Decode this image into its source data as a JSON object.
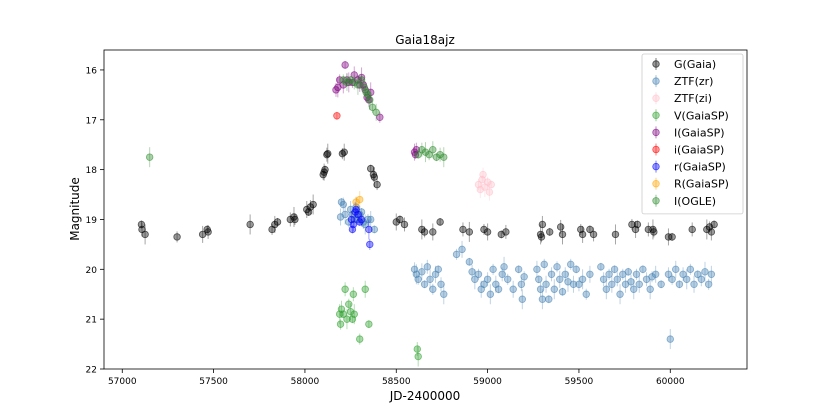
{
  "chart_data": {
    "type": "scatter",
    "title": "Gaia18ajz",
    "xlabel": "JD-2400000",
    "ylabel": "Magnitude",
    "xlim": [
      56900,
      60420
    ],
    "ylim": [
      22,
      15.6
    ],
    "y_inverted": true,
    "xticks": [
      57000,
      57500,
      58000,
      58500,
      59000,
      59500,
      60000
    ],
    "yticks": [
      16,
      17,
      18,
      19,
      20,
      21,
      22
    ],
    "legend_position": "top-right",
    "series": [
      {
        "name": "G(Gaia)",
        "color": "#000000",
        "points": [
          [
            57105,
            19.1
          ],
          [
            57108,
            19.2
          ],
          [
            57125,
            19.3
          ],
          [
            57300,
            19.35
          ],
          [
            57440,
            19.3
          ],
          [
            57465,
            19.2
          ],
          [
            57470,
            19.25
          ],
          [
            57700,
            19.1
          ],
          [
            57820,
            19.2
          ],
          [
            57835,
            19.1
          ],
          [
            57850,
            19.05
          ],
          [
            57920,
            19.0
          ],
          [
            57940,
            18.95
          ],
          [
            57945,
            19.0
          ],
          [
            58010,
            18.8
          ],
          [
            58020,
            18.85
          ],
          [
            58030,
            18.75
          ],
          [
            58045,
            18.7
          ],
          [
            58100,
            18.1
          ],
          [
            58105,
            18.05
          ],
          [
            58110,
            18.0
          ],
          [
            58120,
            17.7
          ],
          [
            58125,
            17.68
          ],
          [
            58205,
            17.68
          ],
          [
            58215,
            17.65
          ],
          [
            58360,
            17.98
          ],
          [
            58375,
            18.1
          ],
          [
            58380,
            18.15
          ],
          [
            58395,
            18.3
          ],
          [
            58500,
            19.05
          ],
          [
            58520,
            19.0
          ],
          [
            58545,
            19.1
          ],
          [
            58640,
            19.2
          ],
          [
            58655,
            19.25
          ],
          [
            58700,
            19.25
          ],
          [
            58740,
            19.05
          ],
          [
            58865,
            19.2
          ],
          [
            58900,
            19.25
          ],
          [
            58980,
            19.2
          ],
          [
            59000,
            19.25
          ],
          [
            59075,
            19.3
          ],
          [
            59100,
            19.25
          ],
          [
            59290,
            19.3
          ],
          [
            59295,
            19.35
          ],
          [
            59300,
            19.1
          ],
          [
            59340,
            19.25
          ],
          [
            59400,
            19.15
          ],
          [
            59410,
            19.3
          ],
          [
            59510,
            19.2
          ],
          [
            59520,
            19.3
          ],
          [
            59560,
            19.2
          ],
          [
            59580,
            19.3
          ],
          [
            59700,
            19.3
          ],
          [
            59790,
            19.1
          ],
          [
            59810,
            19.2
          ],
          [
            59820,
            19.1
          ],
          [
            59880,
            19.2
          ],
          [
            59905,
            19.2
          ],
          [
            59910,
            19.25
          ],
          [
            59990,
            19.35
          ],
          [
            60010,
            19.35
          ],
          [
            60120,
            19.2
          ],
          [
            60200,
            19.2
          ],
          [
            60215,
            19.15
          ],
          [
            60225,
            19.25
          ],
          [
            60240,
            19.1
          ]
        ]
      },
      {
        "name": "ZTF(zr)",
        "color": "#4682b4",
        "points": [
          [
            58195,
            18.95
          ],
          [
            58200,
            18.65
          ],
          [
            58210,
            18.7
          ],
          [
            58220,
            18.9
          ],
          [
            58240,
            19.05
          ],
          [
            58250,
            18.8
          ],
          [
            58260,
            18.9
          ],
          [
            58270,
            19.0
          ],
          [
            58280,
            18.75
          ],
          [
            58290,
            19.0
          ],
          [
            58300,
            18.9
          ],
          [
            58310,
            18.85
          ],
          [
            58320,
            19.05
          ],
          [
            58330,
            19.1
          ],
          [
            58345,
            19.0
          ],
          [
            58360,
            19.0
          ],
          [
            58380,
            19.2
          ],
          [
            58600,
            20.0
          ],
          [
            58610,
            20.1
          ],
          [
            58620,
            20.2
          ],
          [
            58640,
            20.05
          ],
          [
            58655,
            20.3
          ],
          [
            58670,
            19.95
          ],
          [
            58685,
            20.2
          ],
          [
            58700,
            20.4
          ],
          [
            58715,
            20.1
          ],
          [
            58730,
            20.0
          ],
          [
            58745,
            20.3
          ],
          [
            58760,
            20.5
          ],
          [
            58830,
            19.7
          ],
          [
            58860,
            19.6
          ],
          [
            58900,
            19.85
          ],
          [
            58915,
            20.05
          ],
          [
            58930,
            20.2
          ],
          [
            58950,
            20.1
          ],
          [
            58965,
            20.4
          ],
          [
            58980,
            20.3
          ],
          [
            59000,
            20.2
          ],
          [
            59015,
            20.5
          ],
          [
            59030,
            20.0
          ],
          [
            59045,
            20.3
          ],
          [
            59060,
            20.4
          ],
          [
            59080,
            20.1
          ],
          [
            59090,
            19.95
          ],
          [
            59110,
            20.2
          ],
          [
            59140,
            20.4
          ],
          [
            59170,
            20.0
          ],
          [
            59185,
            20.3
          ],
          [
            59190,
            20.6
          ],
          [
            59200,
            20.15
          ],
          [
            59270,
            20.0
          ],
          [
            59280,
            20.2
          ],
          [
            59290,
            20.4
          ],
          [
            59300,
            20.6
          ],
          [
            59310,
            19.9
          ],
          [
            59320,
            20.3
          ],
          [
            59335,
            20.6
          ],
          [
            59350,
            20.1
          ],
          [
            59365,
            20.4
          ],
          [
            59380,
            19.95
          ],
          [
            59395,
            20.2
          ],
          [
            59410,
            20.45
          ],
          [
            59425,
            20.1
          ],
          [
            59440,
            20.25
          ],
          [
            59455,
            19.9
          ],
          [
            59470,
            20.3
          ],
          [
            59485,
            20.0
          ],
          [
            59500,
            20.3
          ],
          [
            59520,
            20.2
          ],
          [
            59540,
            20.5
          ],
          [
            59560,
            20.1
          ],
          [
            59620,
            19.95
          ],
          [
            59635,
            20.2
          ],
          [
            59650,
            20.4
          ],
          [
            59665,
            20.1
          ],
          [
            59680,
            20.3
          ],
          [
            59695,
            20.0
          ],
          [
            59710,
            20.2
          ],
          [
            59725,
            20.5
          ],
          [
            59740,
            20.1
          ],
          [
            59755,
            20.3
          ],
          [
            59770,
            20.05
          ],
          [
            59785,
            20.25
          ],
          [
            59800,
            20.4
          ],
          [
            59815,
            20.1
          ],
          [
            59830,
            20.3
          ],
          [
            59850,
            20.0
          ],
          [
            59870,
            20.2
          ],
          [
            59890,
            20.4
          ],
          [
            59900,
            20.15
          ],
          [
            59920,
            20.1
          ],
          [
            59950,
            20.3
          ],
          [
            59990,
            20.1
          ],
          [
            60000,
            21.4
          ],
          [
            60010,
            20.2
          ],
          [
            60030,
            20.0
          ],
          [
            60050,
            20.3
          ],
          [
            60070,
            20.1
          ],
          [
            60090,
            20.2
          ],
          [
            60110,
            20.0
          ],
          [
            60130,
            20.3
          ],
          [
            60150,
            20.1
          ],
          [
            60170,
            20.2
          ],
          [
            60190,
            20.05
          ],
          [
            60210,
            20.3
          ],
          [
            60225,
            20.1
          ]
        ]
      },
      {
        "name": "ZTF(zi)",
        "color": "#ffc0cb",
        "points": [
          [
            58950,
            18.3
          ],
          [
            58960,
            18.4
          ],
          [
            58970,
            18.2
          ],
          [
            58975,
            18.1
          ],
          [
            58985,
            18.35
          ],
          [
            59000,
            18.25
          ],
          [
            59010,
            18.45
          ],
          [
            59020,
            18.3
          ]
        ]
      },
      {
        "name": "V(GaiaSP)",
        "color": "#2ca02c",
        "points": [
          [
            58190,
            20.9
          ],
          [
            58195,
            21.1
          ],
          [
            58200,
            20.8
          ],
          [
            58210,
            20.9
          ],
          [
            58220,
            20.4
          ],
          [
            58230,
            21.0
          ],
          [
            58240,
            20.7
          ],
          [
            58250,
            20.85
          ],
          [
            58260,
            21.0
          ],
          [
            58265,
            20.5
          ],
          [
            58270,
            20.9
          ],
          [
            58300,
            21.4
          ],
          [
            58330,
            20.4
          ],
          [
            58350,
            21.1
          ],
          [
            58615,
            21.6
          ],
          [
            58620,
            21.75
          ]
        ]
      },
      {
        "name": "I(GaiaSP)",
        "color": "#800080",
        "points": [
          [
            58170,
            16.4
          ],
          [
            58180,
            16.35
          ],
          [
            58190,
            16.2
          ],
          [
            58210,
            16.3
          ],
          [
            58220,
            15.9
          ],
          [
            58230,
            16.2
          ],
          [
            58240,
            16.25
          ],
          [
            58260,
            16.25
          ],
          [
            58270,
            16.1
          ],
          [
            58290,
            16.2
          ],
          [
            58300,
            16.3
          ],
          [
            58310,
            16.15
          ],
          [
            58320,
            16.3
          ],
          [
            58330,
            16.4
          ],
          [
            58340,
            16.55
          ],
          [
            58350,
            16.6
          ],
          [
            58360,
            16.45
          ],
          [
            58410,
            16.95
          ],
          [
            58600,
            17.65
          ],
          [
            58605,
            17.7
          ],
          [
            58610,
            17.6
          ]
        ]
      },
      {
        "name": "i(GaiaSP)",
        "color": "#ff0000",
        "points": [
          [
            58175,
            16.92
          ]
        ]
      },
      {
        "name": "r(GaiaSP)",
        "color": "#0000ff",
        "points": [
          [
            58255,
            19.0
          ],
          [
            58260,
            19.2
          ],
          [
            58265,
            19.1
          ],
          [
            58275,
            18.85
          ],
          [
            58280,
            18.8
          ],
          [
            58290,
            18.9
          ],
          [
            58300,
            19.05
          ],
          [
            58310,
            19.0
          ],
          [
            58350,
            19.2
          ],
          [
            58355,
            19.5
          ]
        ]
      },
      {
        "name": "R(GaiaSP)",
        "color": "#ffa500",
        "points": [
          [
            58280,
            18.65
          ],
          [
            58300,
            18.6
          ]
        ]
      },
      {
        "name": "I(OGLE)",
        "color": "#2e8b2e",
        "points": [
          [
            57150,
            17.75
          ],
          [
            58210,
            16.2
          ],
          [
            58230,
            16.25
          ],
          [
            58250,
            16.2
          ],
          [
            58270,
            16.25
          ],
          [
            58290,
            16.3
          ],
          [
            58310,
            16.2
          ],
          [
            58325,
            16.35
          ],
          [
            58335,
            16.45
          ],
          [
            58345,
            16.5
          ],
          [
            58355,
            16.6
          ],
          [
            58370,
            16.75
          ],
          [
            58390,
            16.85
          ],
          [
            58620,
            17.7
          ],
          [
            58640,
            17.6
          ],
          [
            58660,
            17.65
          ],
          [
            58680,
            17.7
          ],
          [
            58700,
            17.6
          ],
          [
            58720,
            17.75
          ],
          [
            58740,
            17.7
          ],
          [
            58760,
            17.75
          ]
        ]
      }
    ]
  }
}
